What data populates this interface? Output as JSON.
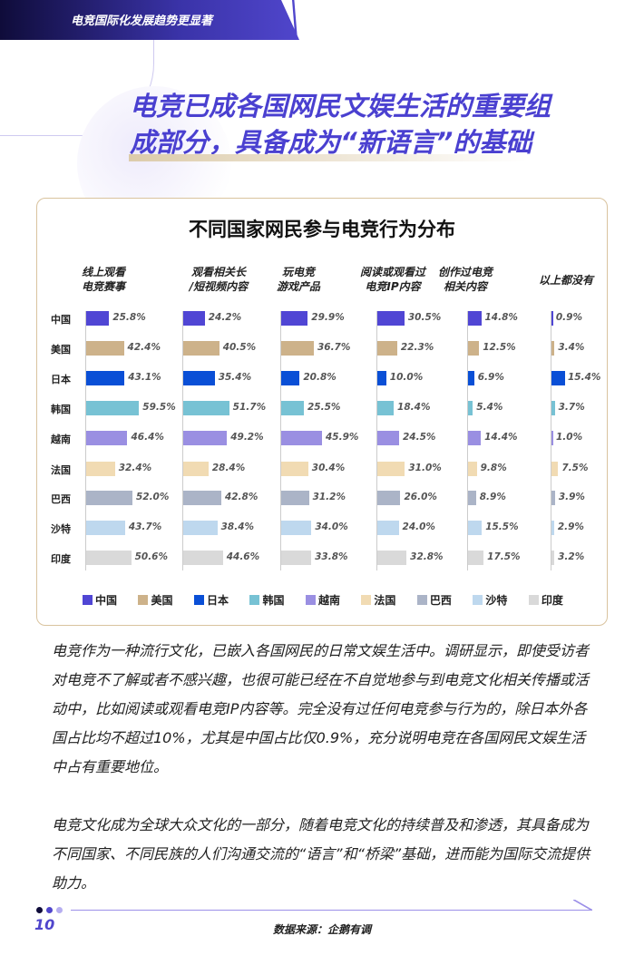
{
  "header": {
    "section": "电竞国际化发展趋势更显著"
  },
  "title": {
    "line1": "电竞已成各国网民文娱生活的重要组",
    "line2": "成部分，具备成为“新语言”的基础"
  },
  "chart_data": {
    "type": "bar",
    "title": "不同国家网民参与电竞行为分布",
    "countries": [
      "中国",
      "美国",
      "日本",
      "韩国",
      "越南",
      "法国",
      "巴西",
      "沙特",
      "印度"
    ],
    "colors": [
      "#5046d4",
      "#cdb28a",
      "#0a4fd6",
      "#77c2d4",
      "#9a8fe2",
      "#f1dbb3",
      "#abb4c7",
      "#bed8ee",
      "#d9d9d9"
    ],
    "series": [
      {
        "name": "线上观看\n电竞赛事",
        "values": [
          25.8,
          42.4,
          43.1,
          59.5,
          46.4,
          32.4,
          52.0,
          43.7,
          50.6
        ]
      },
      {
        "name": "观看相关长\n/短视频内容",
        "values": [
          24.2,
          40.5,
          35.4,
          51.7,
          49.2,
          28.4,
          42.8,
          38.4,
          44.6
        ]
      },
      {
        "name": "玩电竞\n游戏产品",
        "values": [
          29.9,
          36.7,
          20.8,
          25.5,
          45.9,
          30.4,
          31.2,
          34.0,
          33.8
        ]
      },
      {
        "name": "阅读或观看过\n电竞IP内容",
        "values": [
          30.5,
          22.3,
          10.0,
          18.4,
          24.5,
          31.0,
          26.0,
          24.0,
          32.8
        ]
      },
      {
        "name": "创作过电竞\n相关内容",
        "values": [
          14.8,
          12.5,
          6.9,
          5.4,
          14.4,
          9.8,
          8.9,
          15.5,
          17.5
        ]
      },
      {
        "name": "以上都没有",
        "values": [
          0.9,
          3.4,
          15.4,
          3.7,
          1.0,
          7.5,
          3.9,
          2.9,
          3.2
        ]
      }
    ],
    "unit": "%",
    "legend": "bottom"
  },
  "body": {
    "p1": "电竞作为一种流行文化，已嵌入各国网民的日常文娱生活中。调研显示，即使受访者对电竞不了解或者不感兴趣，也很可能已经在不自觉地参与到电竞文化相关传播或活动中，比如阅读或观看电竞IP内容等。完全没有过任何电竞参与行为的，除日本外各国占比均不超过10%，尤其是中国占比仅0.9%，充分说明电竞在各国网民文娱生活中占有重要地位。",
    "p2": "电竞文化成为全球大众文化的一部分，随着电竞文化的持续普及和渗透，其具备成为不同国家、不同民族的人们沟通交流的“语言”和“桥梁”基础，进而能为国际交流提供助力。"
  },
  "footer": {
    "page": "10",
    "source": "数据来源：企鹅有调"
  }
}
